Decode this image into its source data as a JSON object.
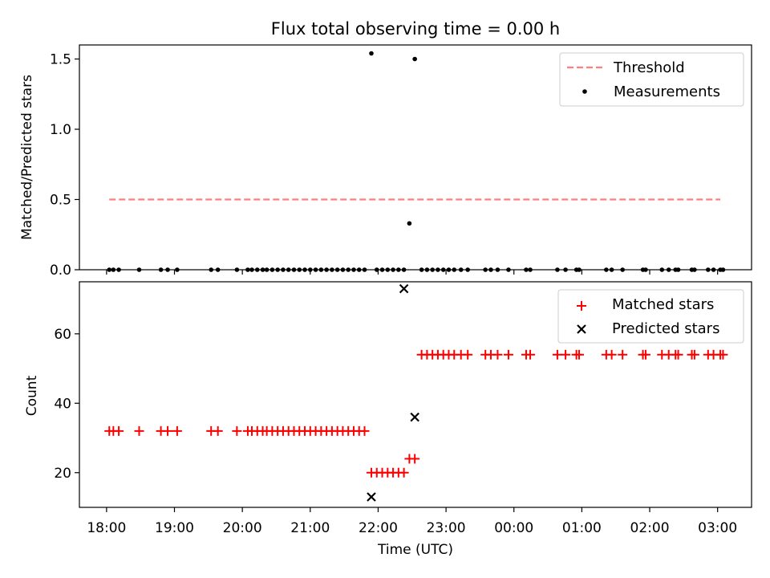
{
  "chart_data": [
    {
      "type": "scatter",
      "title": "Flux total observing time = 0.00 h",
      "xlabel": "",
      "ylabel": "Matched/Predicted stars",
      "ylim": [
        0,
        1.6
      ],
      "yticks": [
        "0.0",
        "0.5",
        "1.0",
        "1.5"
      ],
      "ytick_values": [
        0,
        0.5,
        1.0,
        1.5
      ],
      "xlim": [
        -0.4,
        9.5
      ],
      "legend": "top-right",
      "legend_entries": [
        "Threshold",
        "Measurements"
      ],
      "threshold": {
        "name": "Threshold",
        "value": 0.5,
        "x": [
          0.04,
          9.04
        ],
        "color": "#ff7f7f"
      },
      "series": [
        {
          "name": "Measurements",
          "color": "#000000",
          "x": [
            0.04,
            0.1,
            0.18,
            0.48,
            0.8,
            0.9,
            1.04,
            1.54,
            1.64,
            1.92,
            2.08,
            2.14,
            2.22,
            2.3,
            2.36,
            2.44,
            2.52,
            2.6,
            2.68,
            2.76,
            2.84,
            2.92,
            3.0,
            3.08,
            3.16,
            3.24,
            3.32,
            3.4,
            3.48,
            3.56,
            3.64,
            3.72,
            3.8,
            3.9,
            3.98,
            4.06,
            4.14,
            4.22,
            4.3,
            4.38,
            4.46,
            4.54,
            4.64,
            4.72,
            4.8,
            4.88,
            4.96,
            5.04,
            5.12,
            5.22,
            5.32,
            5.58,
            5.66,
            5.76,
            5.92,
            6.18,
            6.24,
            6.64,
            6.76,
            6.92,
            6.96,
            7.36,
            7.44,
            7.6,
            7.9,
            7.94,
            8.18,
            8.28,
            8.38,
            8.42,
            8.62,
            8.66,
            8.86,
            8.94,
            9.04,
            9.08
          ],
          "y": [
            0,
            0,
            0,
            0,
            0,
            0,
            0,
            0,
            0,
            0,
            0,
            0,
            0,
            0,
            0,
            0,
            0,
            0,
            0,
            0,
            0,
            0,
            0,
            0,
            0,
            0,
            0,
            0,
            0,
            0,
            0,
            0,
            0,
            1.54,
            0,
            0,
            0,
            0,
            0,
            0,
            0.33,
            1.5,
            0,
            0,
            0,
            0,
            0,
            0,
            0,
            0,
            0,
            0,
            0,
            0,
            0,
            0,
            0,
            0,
            0,
            0,
            0,
            0,
            0,
            0,
            0,
            0,
            0,
            0,
            0,
            0,
            0,
            0,
            0,
            0,
            0,
            0
          ]
        }
      ]
    },
    {
      "type": "scatter",
      "title": "",
      "xlabel": "Time (UTC)",
      "ylabel": "Count",
      "ylim": [
        10,
        75
      ],
      "yticks": [
        "20",
        "40",
        "60"
      ],
      "ytick_values": [
        20,
        40,
        60
      ],
      "xlim": [
        -0.4,
        9.5
      ],
      "xticks": [
        "18:00",
        "19:00",
        "20:00",
        "21:00",
        "22:00",
        "23:00",
        "00:00",
        "01:00",
        "02:00",
        "03:00"
      ],
      "xtick_values": [
        0,
        1,
        2,
        3,
        4,
        5,
        6,
        7,
        8,
        9
      ],
      "legend": "top-right",
      "legend_entries": [
        "Matched stars",
        "Predicted stars"
      ],
      "series": [
        {
          "name": "Matched stars",
          "marker": "plus",
          "color": "#ff0000",
          "x": [
            0.04,
            0.1,
            0.18,
            0.48,
            0.8,
            0.9,
            1.04,
            1.54,
            1.64,
            1.92,
            2.08,
            2.14,
            2.22,
            2.3,
            2.36,
            2.44,
            2.52,
            2.6,
            2.68,
            2.76,
            2.84,
            2.92,
            3.0,
            3.08,
            3.16,
            3.24,
            3.32,
            3.4,
            3.48,
            3.56,
            3.64,
            3.72,
            3.8,
            3.9,
            3.98,
            4.06,
            4.14,
            4.22,
            4.3,
            4.38,
            4.46,
            4.54,
            4.64,
            4.72,
            4.8,
            4.88,
            4.96,
            5.04,
            5.12,
            5.22,
            5.32,
            5.58,
            5.66,
            5.76,
            5.92,
            6.18,
            6.24,
            6.64,
            6.76,
            6.92,
            6.96,
            7.36,
            7.44,
            7.6,
            7.9,
            7.94,
            8.18,
            8.28,
            8.38,
            8.42,
            8.62,
            8.66,
            8.86,
            8.94,
            9.04,
            9.08
          ],
          "y": [
            32,
            32,
            32,
            32,
            32,
            32,
            32,
            32,
            32,
            32,
            32,
            32,
            32,
            32,
            32,
            32,
            32,
            32,
            32,
            32,
            32,
            32,
            32,
            32,
            32,
            32,
            32,
            32,
            32,
            32,
            32,
            32,
            32,
            20,
            20,
            20,
            20,
            20,
            20,
            20,
            24,
            24,
            54,
            54,
            54,
            54,
            54,
            54,
            54,
            54,
            54,
            54,
            54,
            54,
            54,
            54,
            54,
            54,
            54,
            54,
            54,
            54,
            54,
            54,
            54,
            54,
            54,
            54,
            54,
            54,
            54,
            54,
            54,
            54,
            54,
            54
          ]
        },
        {
          "name": "Predicted stars",
          "marker": "x",
          "color": "#000000",
          "x": [
            3.9,
            4.38,
            4.54
          ],
          "y": [
            13,
            73,
            36
          ]
        }
      ]
    }
  ]
}
